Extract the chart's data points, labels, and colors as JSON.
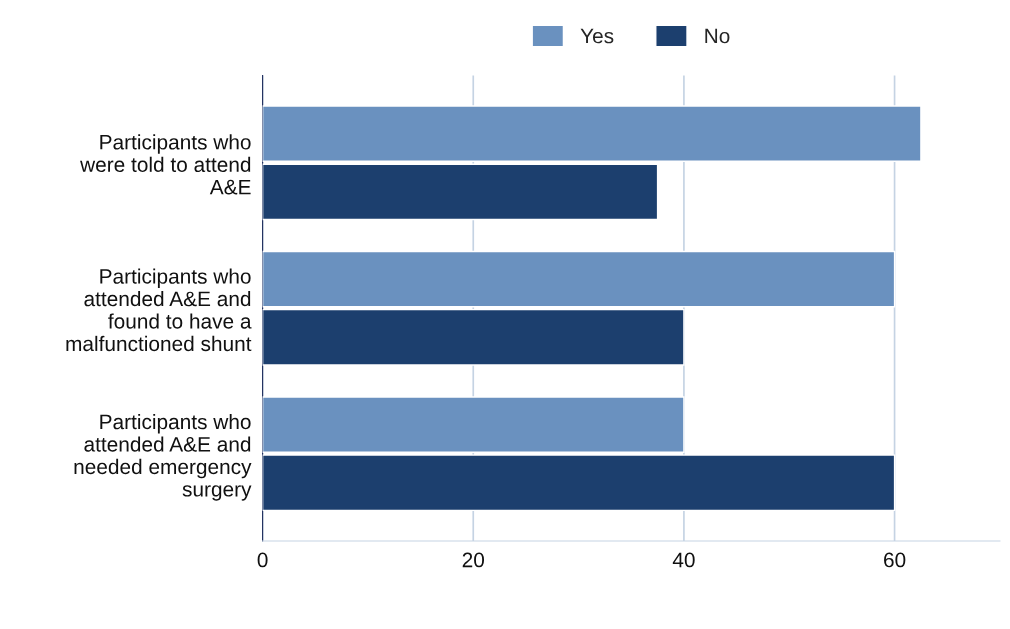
{
  "chart_data": {
    "type": "bar",
    "orientation": "horizontal",
    "categories": [
      "Participants who\nwere told to attend\nA&E",
      "Participants who\nattended A&E and\nfound to have a\nmalfunctioned shunt",
      "Participants who\nattended A&E and\nneeded emergency\nsurgery"
    ],
    "series": [
      {
        "name": "Yes",
        "color": "#6a91bf",
        "values": [
          62.5,
          60,
          40
        ]
      },
      {
        "name": "No",
        "color": "#1c3f6e",
        "values": [
          37.5,
          40,
          60
        ]
      }
    ],
    "xlim": [
      0,
      70
    ],
    "xticks": [
      0,
      20,
      40,
      60
    ],
    "grid": "x",
    "legend": "top"
  }
}
